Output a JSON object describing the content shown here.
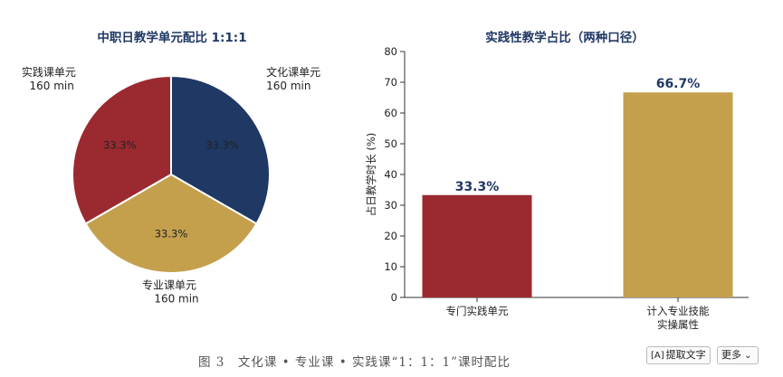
{
  "chart_data": [
    {
      "type": "pie",
      "title": "中职日教学单元配比 1:1:1",
      "slices": [
        {
          "name": "文化课单元",
          "duration": "160 min",
          "value": 33.3,
          "label": "33.3%",
          "color": "#1f3864"
        },
        {
          "name": "专业课单元",
          "duration": "160 min",
          "value": 33.3,
          "label": "33.3%",
          "color": "#c4a04d"
        },
        {
          "name": "实践课单元",
          "duration": "160 min",
          "value": 33.3,
          "label": "33.3%",
          "color": "#9b2a30"
        }
      ]
    },
    {
      "type": "bar",
      "title": "实践性教学占比（两种口径）",
      "ylabel": "占日教学时长 (%)",
      "ylim": [
        0,
        80
      ],
      "yticks": [
        "0",
        "10",
        "20",
        "30",
        "40",
        "50",
        "60",
        "70",
        "80"
      ],
      "categories": [
        {
          "lines": [
            "专门实践单元"
          ]
        },
        {
          "lines": [
            "计入专业技能",
            "实操属性"
          ]
        }
      ],
      "values": [
        33.3,
        66.7
      ],
      "value_labels": [
        "33.3%",
        "66.7%"
      ],
      "colors": [
        "#9b2a30",
        "#c4a04d"
      ],
      "label_color": "#1f3864"
    }
  ],
  "caption": "图 3　文化课 • 专业课 • 实践课“1：1：1”课时配比",
  "toolbar": {
    "extract_text": "提取文字",
    "more": "更多"
  },
  "icons": {
    "extract": "text-select-icon",
    "more": "chevron-down-icon"
  }
}
